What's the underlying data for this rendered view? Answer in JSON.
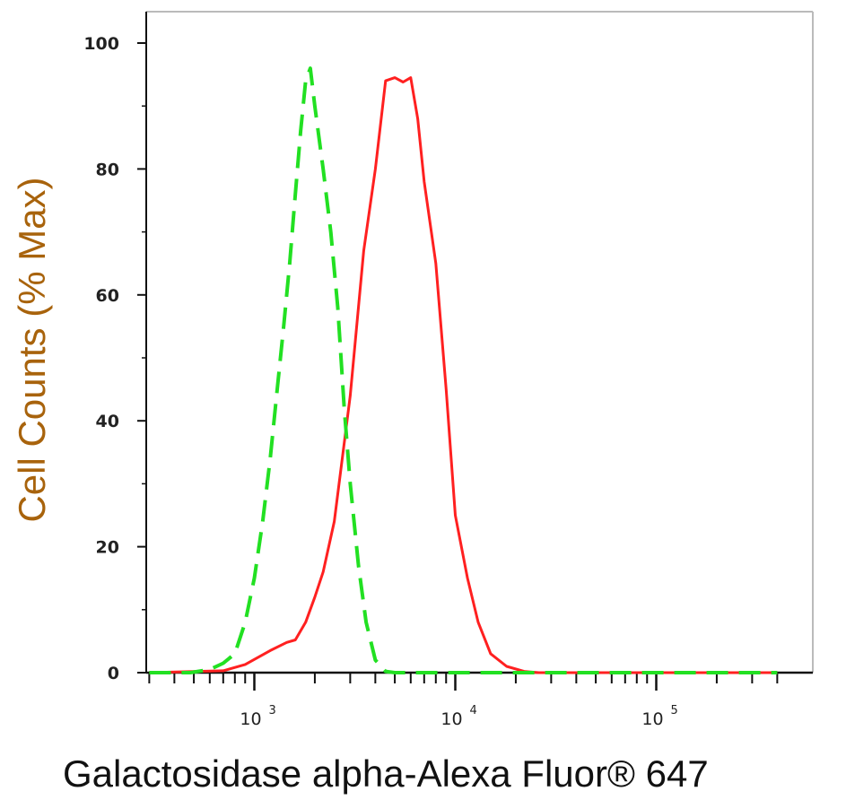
{
  "chart_data": {
    "type": "line",
    "title": "",
    "xlabel": "Galactosidase alpha-Alexa Fluor® 647",
    "ylabel": "Cell Counts (% Max)",
    "x_scale": "log",
    "xlim": [
      300,
      400000
    ],
    "ylim": [
      0,
      100
    ],
    "x_ticks": [
      {
        "label": "10",
        "exponent": "3"
      },
      {
        "label": "10",
        "exponent": "4"
      },
      {
        "label": "10",
        "exponent": "5"
      }
    ],
    "y_ticks": [
      "0",
      "20",
      "40",
      "60",
      "80",
      "100"
    ],
    "grid": false,
    "legend": "none",
    "series": [
      {
        "color": "#ff2020",
        "style": "solid",
        "x": [
          300,
          700,
          900,
          1200,
          1450,
          1600,
          1800,
          2000,
          2200,
          2500,
          3000,
          3500,
          4000,
          4500,
          5000,
          5500,
          6000,
          6500,
          7000,
          8000,
          9000,
          10000,
          11500,
          13000,
          15000,
          18000,
          22000,
          26000,
          30000,
          400000
        ],
        "y": [
          0,
          0.3,
          1.3,
          3.5,
          4.8,
          5.2,
          8,
          12,
          16,
          24,
          44,
          67,
          80,
          94,
          94.5,
          93.8,
          94.5,
          88,
          78,
          65,
          45,
          25,
          15,
          8,
          3,
          1,
          0.2,
          0,
          0,
          0
        ]
      },
      {
        "color": "#22e022",
        "style": "dashed",
        "x": [
          300,
          480,
          600,
          700,
          800,
          900,
          1000,
          1100,
          1200,
          1300,
          1400,
          1500,
          1600,
          1700,
          1800,
          1900,
          2000,
          2200,
          2400,
          2600,
          2800,
          3000,
          3300,
          3600,
          4000,
          4500,
          5000,
          400000
        ],
        "y": [
          0,
          0,
          0.5,
          1.5,
          3,
          8,
          15,
          24,
          34,
          45,
          55,
          65,
          76,
          86,
          94,
          96,
          90,
          80,
          70,
          58,
          42,
          30,
          17,
          8,
          2,
          0.2,
          0,
          0
        ]
      }
    ]
  }
}
